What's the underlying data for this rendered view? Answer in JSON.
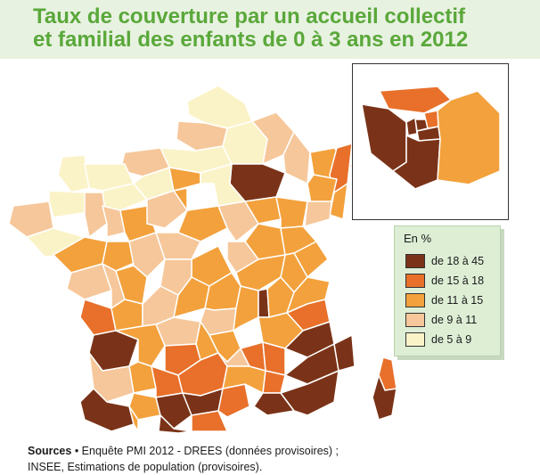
{
  "title": {
    "line1": "Taux de couverture par un accueil collectif",
    "line2": "et familial des enfants de 0 à 3 ans en 2012"
  },
  "legend": {
    "title": "En %",
    "classes": [
      {
        "label": "de 18 à 45",
        "color": "#7a3318"
      },
      {
        "label": "de 15 à 18",
        "color": "#e8702a"
      },
      {
        "label": "de 11 à 15",
        "color": "#f3a13c"
      },
      {
        "label": "de 9 à 11",
        "color": "#f6c79a"
      },
      {
        "label": "de 5 à 9",
        "color": "#fbf3c8"
      }
    ]
  },
  "sources": {
    "label": "Sources",
    "bullet": " • ",
    "line1": "Enquête PMI 2012 - DREES (données provisoires) ;",
    "line2": "INSEE, Estimations de population (provisoires)."
  },
  "map": {
    "border_color": "#ffffff",
    "paris_region_colors": [
      "#7a3318",
      "#e8702a",
      "#f3a13c"
    ]
  }
}
